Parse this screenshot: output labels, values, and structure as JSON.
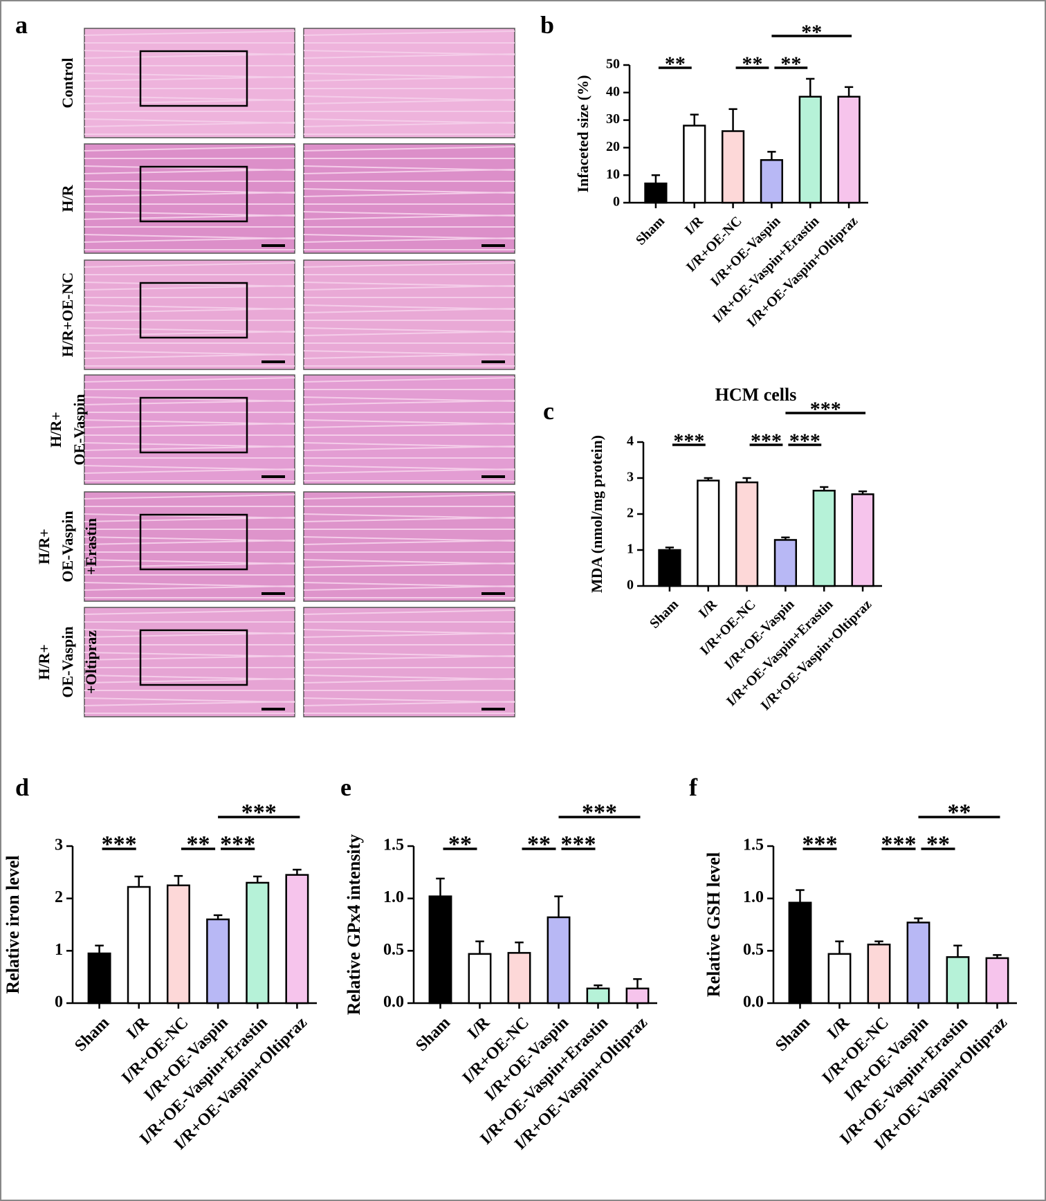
{
  "image_panel": {
    "label": "a",
    "rows": [
      [
        "Control"
      ],
      [
        "H/R"
      ],
      [
        "H/R+OE-NC"
      ],
      [
        "H/R+",
        "OE-Vaspin"
      ],
      [
        "H/R+",
        "OE-Vaspin",
        "+Erastin"
      ],
      [
        "H/R+",
        "OE-Vaspin",
        "+Oltipraz"
      ]
    ]
  },
  "chart_data": [
    {
      "type": "bar",
      "panel": "b",
      "y_label": "Infaceted size (%)",
      "categories": [
        "Sham",
        "I/R",
        "I/R+OE-NC",
        "I/R+OE-Vaspin",
        "I/R+OE-Vaspin+Erastin",
        "I/R+OE-Vaspin+Oltipraz"
      ],
      "values": [
        7,
        28,
        26,
        15.5,
        38.5,
        38.5
      ],
      "errors": [
        3,
        4,
        8,
        3,
        6.5,
        3.5
      ],
      "colors": [
        "#000000",
        "#ffffff",
        "#fdd8d8",
        "#b8b8f5",
        "#b6f2d8",
        "#f6c4ec"
      ],
      "ylim": [
        0,
        50
      ],
      "yticks": [
        0,
        10,
        20,
        30,
        40,
        50
      ],
      "comparisons": [
        {
          "label": "**",
          "between": [
            0,
            1
          ]
        },
        {
          "label": "**",
          "between": [
            2,
            3
          ]
        },
        {
          "label": "**",
          "between": [
            3,
            4
          ]
        },
        {
          "label": "**",
          "between": [
            3,
            5
          ]
        }
      ]
    },
    {
      "type": "bar",
      "panel": "c",
      "title": "HCM cells",
      "y_label": "MDA (nmol/mg protein)",
      "categories": [
        "Sham",
        "I/R",
        "I/R+OE-NC",
        "I/R+OE-Vaspin",
        "I/R+OE-Vaspin+Erastin",
        "I/R+OE-Vaspin+Oltipraz"
      ],
      "values": [
        1,
        2.93,
        2.88,
        1.28,
        2.65,
        2.55
      ],
      "errors": [
        0.07,
        0.07,
        0.12,
        0.07,
        0.1,
        0.08
      ],
      "colors": [
        "#000000",
        "#ffffff",
        "#fdd8d8",
        "#b8b8f5",
        "#b6f2d8",
        "#f6c4ec"
      ],
      "ylim": [
        0,
        4
      ],
      "yticks": [
        0,
        1,
        2,
        3,
        4
      ],
      "comparisons": [
        {
          "label": "***",
          "between": [
            0,
            1
          ]
        },
        {
          "label": "***",
          "between": [
            2,
            3
          ]
        },
        {
          "label": "***",
          "between": [
            3,
            4
          ]
        },
        {
          "label": "***",
          "between": [
            3,
            5
          ]
        }
      ]
    },
    {
      "type": "bar",
      "panel": "d",
      "y_label": "Relative iron level",
      "categories": [
        "Sham",
        "I/R",
        "I/R+OE-NC",
        "I/R+OE-Vaspin",
        "I/R+OE-Vaspin+Erastin",
        "I/R+OE-Vaspin+Oltipraz"
      ],
      "values": [
        0.95,
        2.22,
        2.25,
        1.6,
        2.3,
        2.45
      ],
      "errors": [
        0.15,
        0.2,
        0.18,
        0.08,
        0.12,
        0.1
      ],
      "colors": [
        "#000000",
        "#ffffff",
        "#fdd8d8",
        "#b8b8f5",
        "#b6f2d8",
        "#f6c4ec"
      ],
      "ylim": [
        0,
        3
      ],
      "yticks": [
        0,
        1,
        2,
        3
      ],
      "comparisons": [
        {
          "label": "***",
          "between": [
            0,
            1
          ]
        },
        {
          "label": "**",
          "between": [
            2,
            3
          ]
        },
        {
          "label": "***",
          "between": [
            3,
            4
          ]
        },
        {
          "label": "***",
          "between": [
            3,
            5
          ]
        }
      ]
    },
    {
      "type": "bar",
      "panel": "e",
      "y_label": "Relative GPx4 intensity",
      "categories": [
        "Sham",
        "I/R",
        "I/R+OE-NC",
        "I/R+OE-Vaspin",
        "I/R+OE-Vaspin+Erastin",
        "I/R+OE-Vaspin+Oltipraz"
      ],
      "values": [
        1.02,
        0.47,
        0.48,
        0.82,
        0.14,
        0.14
      ],
      "errors": [
        0.17,
        0.12,
        0.1,
        0.2,
        0.03,
        0.09
      ],
      "colors": [
        "#000000",
        "#ffffff",
        "#fdd8d8",
        "#b8b8f5",
        "#b6f2d8",
        "#f6c4ec"
      ],
      "ylim": [
        0,
        1.5
      ],
      "yticks": [
        {
          "value": 0,
          "label": "0.0"
        },
        0.5,
        {
          "value": 1,
          "label": "1.0"
        },
        1.5
      ],
      "comparisons": [
        {
          "label": "**",
          "between": [
            0,
            1
          ]
        },
        {
          "label": "**",
          "between": [
            2,
            3
          ]
        },
        {
          "label": "***",
          "between": [
            3,
            4
          ]
        },
        {
          "label": "***",
          "between": [
            3,
            5
          ]
        }
      ]
    },
    {
      "type": "bar",
      "panel": "f",
      "y_label": "Relative GSH level",
      "categories": [
        "Sham",
        "I/R",
        "I/R+OE-NC",
        "I/R+OE-Vaspin",
        "I/R+OE-Vaspin+Erastin",
        "I/R+OE-Vaspin+Oltipraz"
      ],
      "values": [
        0.96,
        0.47,
        0.56,
        0.77,
        0.44,
        0.43
      ],
      "errors": [
        0.12,
        0.12,
        0.03,
        0.04,
        0.11,
        0.03
      ],
      "colors": [
        "#000000",
        "#ffffff",
        "#fdd8d8",
        "#b8b8f5",
        "#b6f2d8",
        "#f6c4ec"
      ],
      "ylim": [
        0,
        1.5
      ],
      "yticks": [
        {
          "value": 0,
          "label": "0.0"
        },
        0.5,
        {
          "value": 1,
          "label": "1.0"
        },
        1.5
      ],
      "comparisons": [
        {
          "label": "***",
          "between": [
            0,
            1
          ]
        },
        {
          "label": "***",
          "between": [
            2,
            3
          ]
        },
        {
          "label": "**",
          "between": [
            3,
            4
          ]
        },
        {
          "label": "**",
          "between": [
            3,
            5
          ]
        }
      ]
    }
  ]
}
